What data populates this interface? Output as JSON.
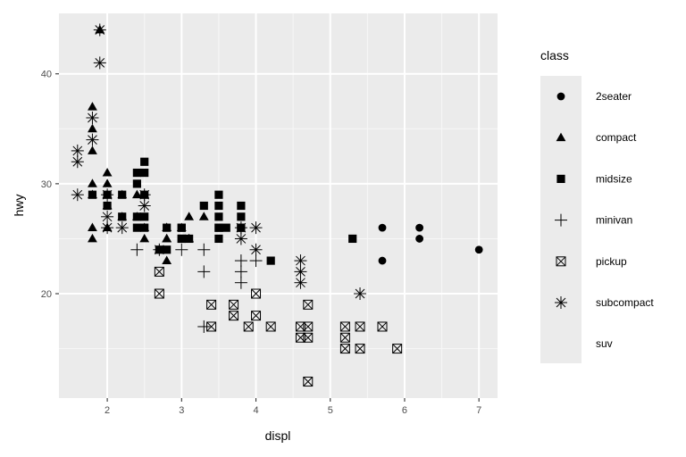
{
  "chart_data": {
    "type": "scatter",
    "xlabel": "displ",
    "ylabel": "hwy",
    "xlim": [
      1.35,
      7.25
    ],
    "ylim": [
      10.5,
      45.5
    ],
    "xticks": [
      2,
      3,
      4,
      5,
      6,
      7
    ],
    "yticks": [
      20,
      30,
      40
    ],
    "grid": true,
    "legend": {
      "title": "class",
      "placement": "right"
    },
    "series": [
      {
        "name": "2seater",
        "shape": "circle",
        "points": [
          [
            5.7,
            26
          ],
          [
            5.7,
            23
          ],
          [
            6.2,
            26
          ],
          [
            6.2,
            25
          ],
          [
            7.0,
            24
          ]
        ]
      },
      {
        "name": "compact",
        "shape": "triangle",
        "points": [
          [
            1.8,
            29
          ],
          [
            1.8,
            29
          ],
          [
            2.0,
            31
          ],
          [
            2.0,
            30
          ],
          [
            2.8,
            26
          ],
          [
            2.8,
            26
          ],
          [
            3.1,
            27
          ],
          [
            1.8,
            26
          ],
          [
            1.8,
            25
          ],
          [
            2.0,
            28
          ],
          [
            2.0,
            28
          ],
          [
            2.8,
            25
          ],
          [
            2.8,
            25
          ],
          [
            3.1,
            25
          ],
          [
            3.1,
            25
          ],
          [
            1.8,
            30
          ],
          [
            1.8,
            33
          ],
          [
            1.8,
            35
          ],
          [
            1.8,
            37
          ],
          [
            1.9,
            44
          ],
          [
            2.0,
            29
          ],
          [
            2.0,
            26
          ],
          [
            2.0,
            29
          ],
          [
            2.0,
            29
          ],
          [
            2.2,
            27
          ],
          [
            2.2,
            29
          ],
          [
            2.4,
            29
          ],
          [
            2.4,
            27
          ],
          [
            2.5,
            29
          ],
          [
            2.5,
            26
          ],
          [
            2.5,
            25
          ],
          [
            2.7,
            24
          ],
          [
            2.8,
            23
          ],
          [
            3.3,
            27
          ],
          [
            3.0,
            26
          ]
        ]
      },
      {
        "name": "midsize",
        "shape": "square",
        "points": [
          [
            2.4,
            27
          ],
          [
            2.4,
            30
          ],
          [
            2.4,
            31
          ],
          [
            2.5,
            32
          ],
          [
            2.5,
            31
          ],
          [
            2.5,
            27
          ],
          [
            2.5,
            26
          ],
          [
            2.5,
            29
          ],
          [
            3.0,
            26
          ],
          [
            3.0,
            25
          ],
          [
            3.1,
            25
          ],
          [
            3.3,
            28
          ],
          [
            3.5,
            29
          ],
          [
            3.5,
            28
          ],
          [
            3.5,
            27
          ],
          [
            3.5,
            26
          ],
          [
            3.5,
            25
          ],
          [
            3.6,
            26
          ],
          [
            3.8,
            28
          ],
          [
            3.8,
            27
          ],
          [
            3.8,
            26
          ],
          [
            3.8,
            26
          ],
          [
            4.2,
            23
          ],
          [
            5.3,
            25
          ],
          [
            2.2,
            29
          ],
          [
            2.2,
            27
          ],
          [
            2.4,
            26
          ],
          [
            2.8,
            26
          ],
          [
            2.8,
            24
          ],
          [
            3.0,
            26
          ],
          [
            3.0,
            25
          ],
          [
            3.5,
            26
          ],
          [
            2.0,
            29
          ],
          [
            2.0,
            28
          ],
          [
            1.8,
            29
          ],
          [
            2.7,
            24
          ]
        ]
      },
      {
        "name": "minivan",
        "shape": "plus",
        "points": [
          [
            2.4,
            24
          ],
          [
            3.0,
            24
          ],
          [
            3.3,
            22
          ],
          [
            3.3,
            24
          ],
          [
            3.3,
            17
          ],
          [
            3.8,
            23
          ],
          [
            3.8,
            21
          ],
          [
            3.8,
            22
          ],
          [
            4.0,
            23
          ]
        ]
      },
      {
        "name": "pickup",
        "shape": "square-cross",
        "points": [
          [
            2.7,
            20
          ],
          [
            2.7,
            22
          ],
          [
            3.4,
            17
          ],
          [
            3.4,
            19
          ],
          [
            3.7,
            19
          ],
          [
            3.7,
            18
          ],
          [
            3.9,
            17
          ],
          [
            4.0,
            20
          ],
          [
            4.0,
            18
          ],
          [
            4.2,
            17
          ],
          [
            4.6,
            16
          ],
          [
            4.6,
            17
          ],
          [
            4.7,
            16
          ],
          [
            4.7,
            17
          ],
          [
            4.7,
            19
          ],
          [
            4.7,
            12
          ],
          [
            5.2,
            17
          ],
          [
            5.2,
            16
          ],
          [
            5.2,
            15
          ],
          [
            5.4,
            17
          ],
          [
            5.4,
            15
          ],
          [
            5.7,
            17
          ],
          [
            5.9,
            15
          ]
        ]
      },
      {
        "name": "subcompact",
        "shape": "asterisk",
        "points": [
          [
            1.6,
            33
          ],
          [
            1.6,
            32
          ],
          [
            1.6,
            29
          ],
          [
            1.8,
            36
          ],
          [
            1.8,
            34
          ],
          [
            1.9,
            41
          ],
          [
            1.9,
            44
          ],
          [
            2.0,
            29
          ],
          [
            2.0,
            27
          ],
          [
            2.0,
            26
          ],
          [
            2.2,
            26
          ],
          [
            2.5,
            29
          ],
          [
            2.5,
            28
          ],
          [
            2.7,
            24
          ],
          [
            3.8,
            26
          ],
          [
            3.8,
            25
          ],
          [
            4.0,
            26
          ],
          [
            4.0,
            24
          ],
          [
            4.6,
            23
          ],
          [
            4.6,
            21
          ],
          [
            4.6,
            22
          ],
          [
            5.4,
            20
          ]
        ]
      },
      {
        "name": "suv",
        "shape": "none",
        "points": []
      }
    ]
  }
}
